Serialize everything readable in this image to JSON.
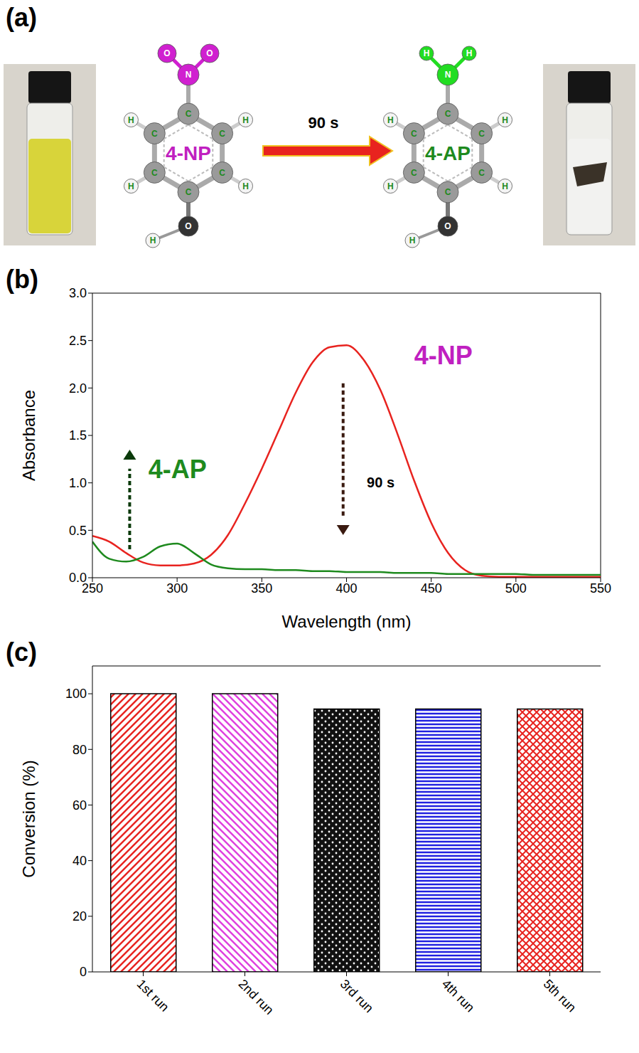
{
  "diagram": {
    "panel_label": "(a)",
    "arrow_label": "90 s",
    "molecules": [
      {
        "name": "4-NP",
        "group": [
          "N",
          "O",
          "O"
        ],
        "ring": [
          "C",
          "C",
          "C",
          "C",
          "C",
          "C"
        ],
        "ring_h": [
          "H",
          "H",
          "H",
          "H"
        ],
        "tail": [
          "O",
          "H"
        ]
      },
      {
        "name": "4-AP",
        "group": [
          "N",
          "H",
          "H"
        ],
        "ring": [
          "C",
          "C",
          "C",
          "C",
          "C",
          "C"
        ],
        "ring_h": [
          "H",
          "H",
          "H",
          "H"
        ],
        "tail": [
          "O",
          "H"
        ]
      }
    ]
  },
  "chart_data": [
    {
      "type": "line",
      "panel_label": "(b)",
      "x_label": "Wavelength (nm)",
      "y_label": "Absorbance",
      "annotations": [
        "90 s"
      ],
      "x": [
        250,
        260,
        270,
        280,
        290,
        300,
        310,
        320,
        330,
        340,
        350,
        360,
        370,
        380,
        390,
        400,
        410,
        420,
        430,
        440,
        450,
        460,
        470,
        480,
        490,
        500,
        510,
        520,
        530,
        540,
        550
      ],
      "series": [
        {
          "name": "4-NP",
          "color": "#e8231f",
          "values": [
            0.44,
            0.38,
            0.26,
            0.16,
            0.13,
            0.13,
            0.15,
            0.24,
            0.45,
            0.78,
            1.15,
            1.55,
            1.95,
            2.27,
            2.43,
            2.45,
            2.3,
            1.98,
            1.52,
            1.02,
            0.58,
            0.26,
            0.08,
            0.02,
            0.01,
            0.01,
            0.01,
            0.01,
            0.01,
            0.01,
            0.01
          ]
        },
        {
          "name": "4-AP",
          "color": "#1e8a1e",
          "values": [
            0.38,
            0.2,
            0.17,
            0.22,
            0.33,
            0.36,
            0.26,
            0.14,
            0.1,
            0.09,
            0.09,
            0.08,
            0.08,
            0.07,
            0.07,
            0.06,
            0.06,
            0.06,
            0.05,
            0.05,
            0.05,
            0.04,
            0.04,
            0.04,
            0.04,
            0.04,
            0.03,
            0.03,
            0.03,
            0.03,
            0.03
          ]
        }
      ],
      "xlim": [
        250,
        550
      ],
      "xticks": [
        250,
        300,
        350,
        400,
        450,
        500,
        550
      ],
      "ylim": [
        0,
        3
      ],
      "yticks": [
        {
          "value": 0,
          "label": "0.0"
        },
        {
          "value": 0.5,
          "label": "0.5"
        },
        {
          "value": 1,
          "label": "1.0"
        },
        {
          "value": 1.5,
          "label": "1.5"
        },
        {
          "value": 2,
          "label": "2.0"
        },
        {
          "value": 2.5,
          "label": "2.5"
        },
        {
          "value": 3,
          "label": "3.0"
        }
      ]
    },
    {
      "type": "bar",
      "panel_label": "(c)",
      "y_label": "Conversion (%)",
      "categories": [
        "1st run",
        "2nd run",
        "3rd run",
        "4th run",
        "5th run"
      ],
      "values": [
        100,
        100,
        94.5,
        94.5,
        94.5
      ],
      "colors": [
        "#e8231f",
        "#e040e0",
        "#111111",
        "#2020e0",
        "#e8231f"
      ],
      "ylim": [
        0,
        110
      ],
      "yticks": [
        0,
        20,
        40,
        60,
        80,
        100
      ]
    }
  ]
}
